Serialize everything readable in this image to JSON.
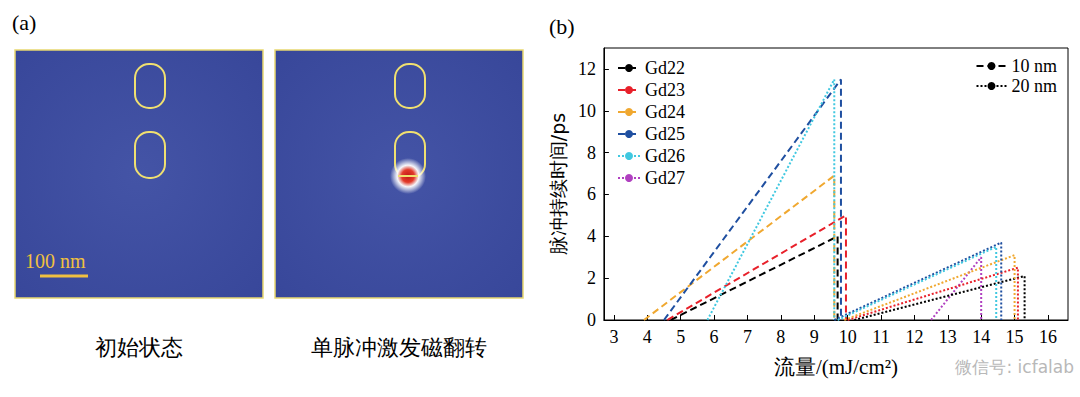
{
  "panel_a": {
    "label": "(a)",
    "scale_bar": "100 nm",
    "images": [
      {
        "caption": "初始状态",
        "spot": false
      },
      {
        "caption": "单脉冲激发磁翻转",
        "spot": true
      }
    ]
  },
  "watermark": "微信号: icfalab",
  "chart_data": {
    "type": "line",
    "panel_label": "(b)",
    "x_label": "流量/(mJ/cm²)",
    "y_label": "脉冲持续时间/ps",
    "xlim": [
      2.7,
      16.6
    ],
    "xticks": [
      3,
      4,
      5,
      6,
      7,
      8,
      9,
      10,
      11,
      12,
      13,
      14,
      15,
      16
    ],
    "ylim": [
      0,
      13
    ],
    "yticks": [
      0,
      2,
      4,
      6,
      8,
      10,
      12
    ],
    "grid": false,
    "legend": "upper left",
    "line_styles": [
      {
        "name": "10 nm",
        "line_style": "dashed"
      },
      {
        "name": "20 nm",
        "line_style": "dotted"
      }
    ],
    "series": [
      {
        "name": "Gd22",
        "color": "#000000",
        "line_style": "dashed",
        "x": [
          4.7,
          9.7,
          9.7
        ],
        "values": [
          0,
          4.0,
          0
        ]
      },
      {
        "name": "Gd23",
        "color": "#e8202a",
        "line_style": "dashed",
        "x": [
          4.6,
          9.95,
          9.95
        ],
        "values": [
          0,
          5.0,
          0
        ]
      },
      {
        "name": "Gd24",
        "color": "#f0a830",
        "line_style": "dashed",
        "x": [
          3.9,
          9.6,
          9.6
        ],
        "values": [
          0,
          6.9,
          0
        ]
      },
      {
        "name": "Gd25",
        "color": "#1f4fa0",
        "line_style": "dashed",
        "x": [
          4.5,
          9.8,
          9.8
        ],
        "values": [
          0,
          11.5,
          0
        ]
      },
      {
        "name": "Gd26",
        "color": "#40c8e0",
        "line_style": "dotted",
        "x": [
          5.8,
          9.6,
          9.6
        ],
        "values": [
          0,
          11.5,
          0
        ]
      },
      {
        "name": "Gd27",
        "color": "#b040c0",
        "line_style": "dotted",
        "x": [
          12.5,
          14.0,
          14.0
        ],
        "values": [
          0,
          3.0,
          0
        ]
      },
      {
        "name": "Gd22",
        "color": "#000000",
        "line_style": "dotted",
        "x": [
          10.2,
          15.3,
          15.3
        ],
        "values": [
          0,
          2.1,
          0
        ]
      },
      {
        "name": "Gd23",
        "color": "#e8202a",
        "line_style": "dotted",
        "x": [
          10.0,
          15.1,
          15.1
        ],
        "values": [
          0,
          2.5,
          0
        ]
      },
      {
        "name": "Gd24",
        "color": "#f0a830",
        "line_style": "dotted",
        "x": [
          9.9,
          15.0,
          15.0
        ],
        "values": [
          0,
          3.1,
          0
        ]
      },
      {
        "name": "Gd25",
        "color": "#1f4fa0",
        "line_style": "dotted",
        "x": [
          9.6,
          14.6,
          14.6
        ],
        "values": [
          0,
          3.7,
          0
        ]
      },
      {
        "name": "Gd26",
        "color": "#40c8e0",
        "line_style": "dotted",
        "x": [
          9.7,
          14.45,
          14.45
        ],
        "values": [
          0,
          3.5,
          0
        ]
      }
    ]
  }
}
